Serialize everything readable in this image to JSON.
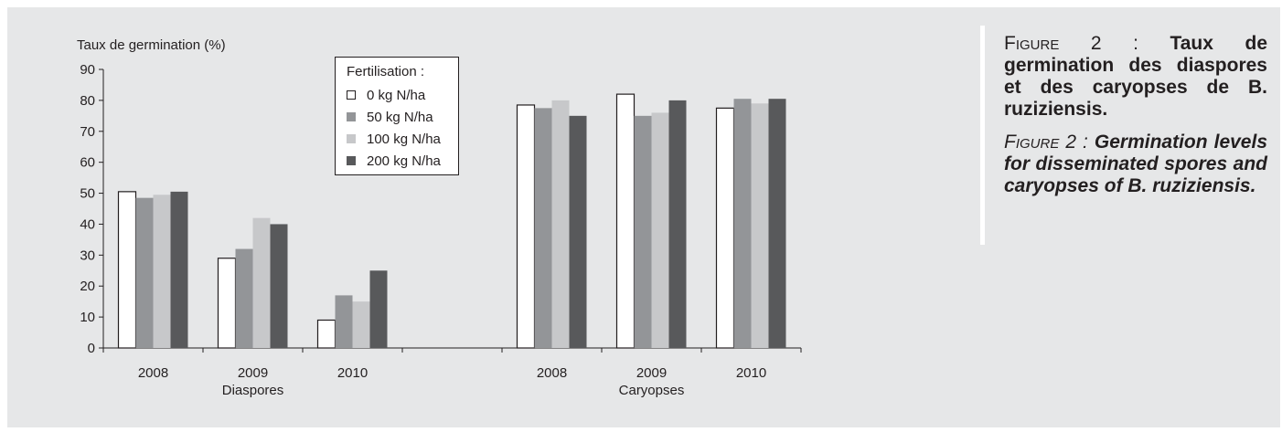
{
  "chart_data": {
    "type": "bar",
    "ylabel": "Taux de germination (%)",
    "ylim": [
      0,
      90
    ],
    "yticks": [
      0,
      10,
      20,
      30,
      40,
      50,
      60,
      70,
      80,
      90
    ],
    "grid": false,
    "legend_title": "Fertilisation :",
    "legend_position": "top-center",
    "groups": [
      {
        "name": "Diaspores",
        "categories": [
          "2008",
          "2009",
          "2010"
        ]
      },
      {
        "name": "Caryopses",
        "categories": [
          "2008",
          "2009",
          "2010"
        ]
      }
    ],
    "series": [
      {
        "name": "0 kg N/ha",
        "color": "#ffffff",
        "values": [
          50.5,
          29,
          9,
          78.5,
          82,
          77.5
        ]
      },
      {
        "name": "50 kg N/ha",
        "color": "#939598",
        "values": [
          48.5,
          32,
          17,
          77.5,
          75,
          80.5
        ]
      },
      {
        "name": "100 kg N/ha",
        "color": "#c7c8ca",
        "values": [
          49.5,
          42,
          15,
          80,
          76,
          79
        ]
      },
      {
        "name": "200 kg N/ha",
        "color": "#58595b",
        "values": [
          50.5,
          40,
          25,
          75,
          80,
          80.5
        ]
      }
    ]
  },
  "caption": {
    "fr_prefix": "Figure 2 : ",
    "fr_text": "Taux de germination des diaspores et des caryopses de B. ruziziensis.",
    "en_prefix": "Figure 2 : ",
    "en_text": "Germination levels for disseminated spores and caryopses of B. ruziziensis."
  }
}
